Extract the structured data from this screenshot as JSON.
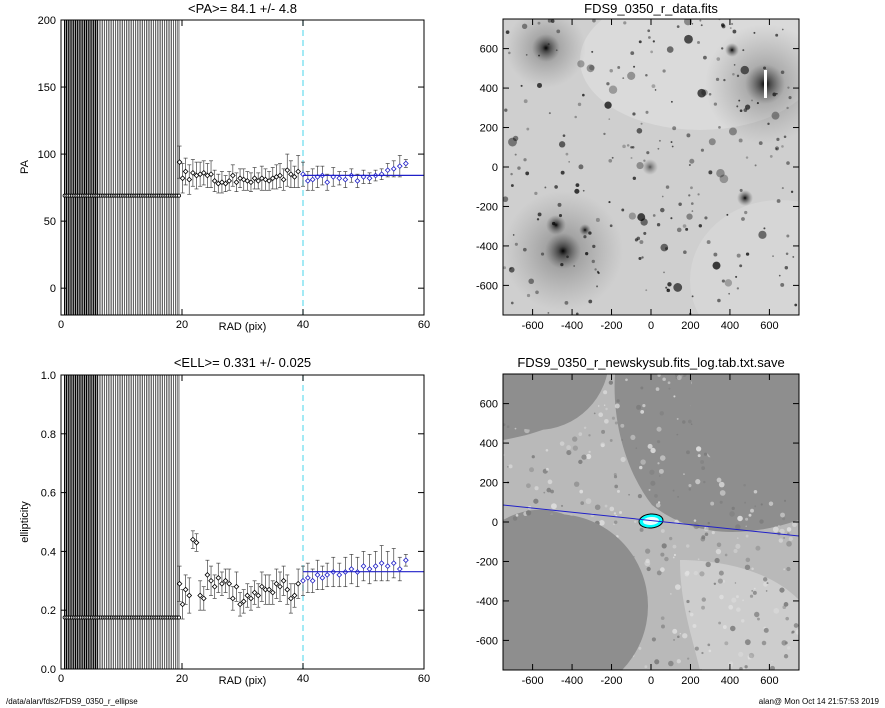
{
  "chart_data": [
    {
      "type": "scatter",
      "title": "<PA>= 84.1 +/- 4.8",
      "xlabel": "RAD (pix)",
      "ylabel": "PA",
      "xlim": [
        0,
        60
      ],
      "ylim": [
        -20,
        200
      ],
      "xticks": [
        0,
        20,
        40,
        60
      ],
      "yticks": [
        0,
        50,
        100,
        150,
        200
      ],
      "vline_x": 40,
      "fit_line": {
        "x": [
          40,
          60
        ],
        "y": [
          84.1,
          84.1
        ]
      },
      "inner_points": {
        "x_start": 0.6,
        "x_end": 19.6,
        "step": 0.3,
        "y": 69
      },
      "series": [
        {
          "x": [
            19.6,
            20.1,
            20.6,
            21.2,
            21.8,
            22.4,
            23.0,
            23.6,
            24.2,
            24.8,
            25.4,
            26.0,
            26.6,
            27.2,
            27.8,
            28.4,
            29.0,
            29.6,
            30.2,
            30.8,
            31.4,
            32.0,
            32.6,
            33.2,
            33.8,
            34.4,
            35.0,
            35.6,
            36.2,
            36.8,
            37.4,
            38.0,
            38.6,
            39.2,
            40.0,
            40.8,
            41.6,
            42.4,
            43.2,
            44.0,
            45.0,
            46.0,
            47.0,
            48.0,
            49.0,
            50.0,
            51.0,
            52.0,
            53.0,
            54.0,
            55.0,
            56.0,
            57.0
          ],
          "y": [
            94,
            82,
            87,
            81,
            86,
            84,
            85,
            86,
            84,
            85,
            80,
            78,
            79,
            78,
            80,
            84,
            79,
            82,
            81,
            80,
            79,
            82,
            80,
            82,
            81,
            80,
            82,
            83,
            84,
            81,
            88,
            85,
            83,
            87,
            85,
            80,
            81,
            83,
            84,
            79,
            83,
            82,
            81,
            84,
            80,
            83,
            82,
            84,
            85,
            88,
            89,
            91,
            93
          ],
          "err": [
            12,
            11,
            10,
            11,
            10,
            10,
            9,
            9,
            9,
            10,
            8,
            7,
            8,
            6,
            7,
            8,
            7,
            7,
            8,
            7,
            7,
            8,
            6,
            9,
            8,
            7,
            8,
            9,
            9,
            8,
            12,
            10,
            8,
            12,
            9,
            7,
            8,
            8,
            7,
            6,
            7,
            5,
            6,
            5,
            5,
            5,
            4,
            4,
            4,
            5,
            6,
            8,
            3
          ]
        }
      ]
    },
    {
      "type": "scatter",
      "title": "<ELL>= 0.331 +/- 0.025",
      "xlabel": "RAD (pix)",
      "ylabel": "ellipticity",
      "xlim": [
        0,
        60
      ],
      "ylim": [
        0,
        1
      ],
      "xticks": [
        0,
        20,
        40,
        60
      ],
      "yticks": [
        0.0,
        0.2,
        0.4,
        0.6,
        0.8,
        1.0
      ],
      "vline_x": 40,
      "fit_line": {
        "x": [
          40,
          60
        ],
        "y": [
          0.331,
          0.331
        ]
      },
      "inner_points": {
        "x_start": 0.6,
        "x_end": 19.6,
        "step": 0.3,
        "y": 0.175
      },
      "series": [
        {
          "x": [
            19.6,
            20.1,
            20.6,
            21.2,
            21.8,
            22.4,
            23.0,
            23.6,
            24.2,
            24.8,
            25.4,
            26.0,
            26.6,
            27.2,
            27.8,
            28.4,
            29.0,
            29.6,
            30.2,
            30.8,
            31.4,
            32.0,
            32.6,
            33.2,
            33.8,
            34.4,
            35.0,
            35.6,
            36.2,
            36.8,
            37.4,
            38.0,
            38.6,
            39.2,
            40.0,
            40.8,
            41.6,
            42.4,
            43.2,
            44.0,
            45.0,
            46.0,
            47.0,
            48.0,
            49.0,
            50.0,
            51.0,
            52.0,
            53.0,
            54.0,
            55.0,
            56.0,
            57.0
          ],
          "y": [
            0.29,
            0.22,
            0.27,
            0.25,
            0.44,
            0.43,
            0.25,
            0.24,
            0.32,
            0.3,
            0.28,
            0.31,
            0.29,
            0.3,
            0.29,
            0.24,
            0.28,
            0.22,
            0.23,
            0.25,
            0.24,
            0.26,
            0.25,
            0.28,
            0.27,
            0.27,
            0.26,
            0.29,
            0.28,
            0.3,
            0.27,
            0.24,
            0.25,
            0.29,
            0.3,
            0.31,
            0.3,
            0.32,
            0.31,
            0.32,
            0.33,
            0.32,
            0.33,
            0.34,
            0.33,
            0.35,
            0.34,
            0.35,
            0.36,
            0.35,
            0.36,
            0.34,
            0.37
          ],
          "err": [
            0.06,
            0.05,
            0.05,
            0.06,
            0.03,
            0.03,
            0.05,
            0.04,
            0.05,
            0.05,
            0.04,
            0.05,
            0.04,
            0.04,
            0.05,
            0.04,
            0.05,
            0.04,
            0.04,
            0.04,
            0.04,
            0.04,
            0.04,
            0.05,
            0.05,
            0.05,
            0.04,
            0.05,
            0.05,
            0.05,
            0.05,
            0.05,
            0.04,
            0.05,
            0.05,
            0.05,
            0.04,
            0.05,
            0.04,
            0.04,
            0.05,
            0.04,
            0.05,
            0.05,
            0.05,
            0.05,
            0.05,
            0.05,
            0.06,
            0.05,
            0.05,
            0.04,
            0.02
          ]
        }
      ]
    }
  ],
  "images": [
    {
      "title": "FDS9_0350_r_data.fits",
      "xlim": [
        -750,
        750
      ],
      "ylim": [
        -750,
        750
      ],
      "xticks": [
        -600,
        -400,
        -200,
        0,
        200,
        400,
        600
      ],
      "yticks": [
        -600,
        -400,
        -200,
        0,
        200,
        400,
        600
      ]
    },
    {
      "title": "FDS9_0350_r_newskysub.fits_log.tab.txt.save",
      "xlim": [
        -750,
        750
      ],
      "ylim": [
        -750,
        750
      ],
      "xticks": [
        -600,
        -400,
        -200,
        0,
        200,
        400,
        600
      ],
      "yticks": [
        -600,
        -400,
        -200,
        0,
        200,
        400,
        600
      ]
    }
  ],
  "colors": {
    "fit_line": "#2020c8",
    "ref_line": "#66ddee",
    "marker": "#000000",
    "image_bg": "#d0d0d0",
    "mask": "#8e8e8e",
    "isophote": "#00ffff"
  },
  "footer": {
    "left": "/data/alan/fds2/FDS9_0350_r_ellipse",
    "right": "alan@  Mon Oct 14 21:57:53 2019"
  }
}
